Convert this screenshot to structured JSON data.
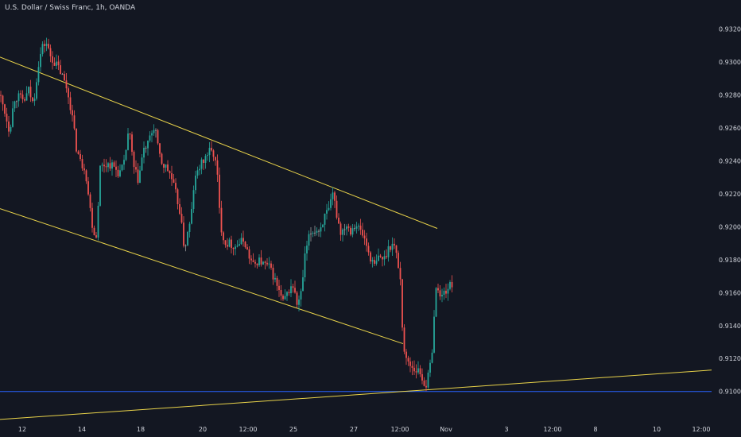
{
  "header": {
    "symbol_title": "U.S. Dollar / Swiss Franc, 1h, OANDA"
  },
  "colors": {
    "background": "#131722",
    "up_candle": "#26a69a",
    "down_candle": "#ef5350",
    "neutral_candle": "#9a9a9a",
    "trendline": "#e9d34a",
    "support_line": "#2962ff",
    "axis_text": "#d1d4dc"
  },
  "chart_data": {
    "type": "candlestick",
    "title": "U.S. Dollar / Swiss Franc, 1h, OANDA",
    "ylim": [
      0.9082,
      0.9329
    ],
    "y_ticks": [
      "0.93200",
      "0.93000",
      "0.92800",
      "0.92600",
      "0.92400",
      "0.92200",
      "0.92000",
      "0.91800",
      "0.91600",
      "0.91400",
      "0.91200",
      "0.91000"
    ],
    "x_ticks": [
      "12",
      "14",
      "18",
      "20",
      "12:00",
      "25",
      "27",
      "12:00",
      "Nov",
      "3",
      "12:00",
      "8",
      "10",
      "12:00"
    ],
    "price_path": [
      [
        0,
        0.928
      ],
      [
        6,
        0.927
      ],
      [
        12,
        0.9258
      ],
      [
        18,
        0.9278
      ],
      [
        24,
        0.9279
      ],
      [
        30,
        0.9276
      ],
      [
        36,
        0.9283
      ],
      [
        42,
        0.9274
      ],
      [
        48,
        0.9298
      ],
      [
        53,
        0.9309
      ],
      [
        58,
        0.9312
      ],
      [
        63,
        0.9304
      ],
      [
        68,
        0.93
      ],
      [
        73,
        0.9297
      ],
      [
        78,
        0.9292
      ],
      [
        84,
        0.9284
      ],
      [
        90,
        0.927
      ],
      [
        96,
        0.9248
      ],
      [
        102,
        0.9238
      ],
      [
        107,
        0.9236
      ],
      [
        112,
        0.9216
      ],
      [
        117,
        0.9198
      ],
      [
        121,
        0.9194
      ],
      [
        126,
        0.9236
      ],
      [
        132,
        0.9238
      ],
      [
        138,
        0.9238
      ],
      [
        144,
        0.9236
      ],
      [
        150,
        0.9232
      ],
      [
        156,
        0.9238
      ],
      [
        162,
        0.926
      ],
      [
        168,
        0.9236
      ],
      [
        174,
        0.9228
      ],
      [
        180,
        0.9246
      ],
      [
        186,
        0.925
      ],
      [
        190,
        0.9256
      ],
      [
        195,
        0.9262
      ],
      [
        199,
        0.9246
      ],
      [
        204,
        0.9238
      ],
      [
        209,
        0.9236
      ],
      [
        214,
        0.9232
      ],
      [
        220,
        0.9222
      ],
      [
        226,
        0.921
      ],
      [
        232,
        0.9186
      ],
      [
        236,
        0.9196
      ],
      [
        240,
        0.9204
      ],
      [
        244,
        0.9226
      ],
      [
        250,
        0.9236
      ],
      [
        256,
        0.924
      ],
      [
        260,
        0.9244
      ],
      [
        264,
        0.9246
      ],
      [
        269,
        0.9244
      ],
      [
        273,
        0.9234
      ],
      [
        277,
        0.9202
      ],
      [
        283,
        0.919
      ],
      [
        289,
        0.919
      ],
      [
        295,
        0.9188
      ],
      [
        301,
        0.919
      ],
      [
        307,
        0.9192
      ],
      [
        313,
        0.9182
      ],
      [
        319,
        0.9176
      ],
      [
        325,
        0.918
      ],
      [
        332,
        0.9177
      ],
      [
        338,
        0.9176
      ],
      [
        344,
        0.917
      ],
      [
        350,
        0.9162
      ],
      [
        356,
        0.9154
      ],
      [
        362,
        0.916
      ],
      [
        368,
        0.9165
      ],
      [
        374,
        0.9152
      ],
      [
        379,
        0.916
      ],
      [
        384,
        0.9184
      ],
      [
        390,
        0.9196
      ],
      [
        396,
        0.9198
      ],
      [
        402,
        0.9198
      ],
      [
        408,
        0.9206
      ],
      [
        414,
        0.921
      ],
      [
        419,
        0.922
      ],
      [
        424,
        0.9206
      ],
      [
        429,
        0.9196
      ],
      [
        435,
        0.9202
      ],
      [
        441,
        0.9198
      ],
      [
        447,
        0.9202
      ],
      [
        453,
        0.9198
      ],
      [
        459,
        0.9192
      ],
      [
        465,
        0.9182
      ],
      [
        471,
        0.9176
      ],
      [
        477,
        0.9182
      ],
      [
        483,
        0.918
      ],
      [
        489,
        0.9188
      ],
      [
        495,
        0.919
      ],
      [
        500,
        0.918
      ],
      [
        504,
        0.9166
      ],
      [
        507,
        0.9128
      ],
      [
        511,
        0.9119
      ],
      [
        515,
        0.9117
      ],
      [
        520,
        0.9114
      ],
      [
        524,
        0.9113
      ],
      [
        528,
        0.9112
      ],
      [
        532,
        0.9106
      ],
      [
        536,
        0.9104
      ],
      [
        540,
        0.9112
      ],
      [
        544,
        0.9128
      ],
      [
        547,
        0.9156
      ],
      [
        550,
        0.9166
      ],
      [
        554,
        0.9156
      ],
      [
        558,
        0.916
      ],
      [
        562,
        0.9162
      ],
      [
        566,
        0.9164
      ],
      [
        570,
        0.9166
      ]
    ],
    "trendlines": [
      {
        "from": [
          0,
          0.9303
        ],
        "to": [
          550,
          0.9199
        ]
      },
      {
        "from": [
          0,
          0.9211
        ],
        "to": [
          507,
          0.9129
        ]
      },
      {
        "from": [
          0,
          0.9083
        ],
        "to": [
          895,
          0.9113
        ]
      }
    ],
    "horizontal_lines": [
      0.91
    ]
  }
}
